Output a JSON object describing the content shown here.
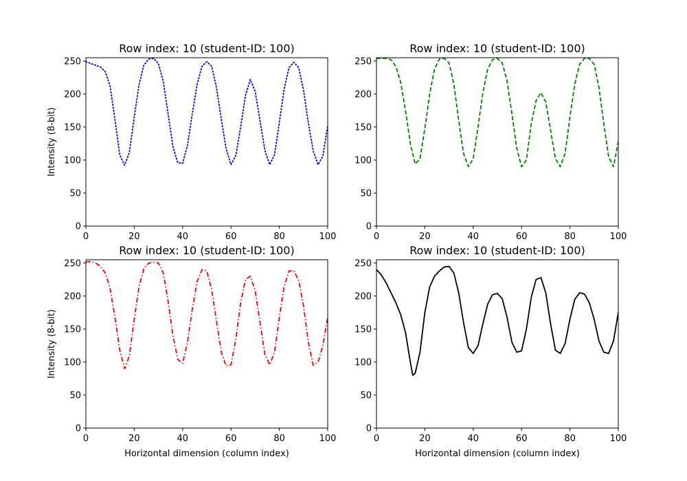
{
  "chart_data": [
    {
      "type": "line",
      "title": "Row index: 10 (student-ID: 100)",
      "xlabel": "",
      "ylabel": "Intensity (8-bit)",
      "xlim": [
        0,
        100
      ],
      "ylim": [
        0,
        255
      ],
      "xticks": [
        "0",
        "20",
        "40",
        "60",
        "80",
        "100"
      ],
      "yticks": [
        "0",
        "50",
        "100",
        "150",
        "200",
        "250"
      ],
      "grid": false,
      "series": [
        {
          "color": "#0000ff",
          "line_style": "dotted",
          "x": [
            0,
            3,
            6,
            8,
            10,
            12,
            14,
            16,
            18,
            20,
            22,
            24,
            26,
            28,
            30,
            32,
            34,
            36,
            38,
            40,
            42,
            44,
            46,
            48,
            50,
            52,
            54,
            56,
            58,
            60,
            62,
            64,
            66,
            68,
            70,
            72,
            74,
            76,
            78,
            80,
            82,
            84,
            86,
            88,
            90,
            92,
            94,
            96,
            98,
            100
          ],
          "y": [
            249,
            245,
            241,
            234,
            212,
            162,
            108,
            92,
            112,
            165,
            215,
            244,
            253,
            254,
            246,
            219,
            170,
            120,
            96,
            95,
            122,
            170,
            215,
            242,
            249,
            242,
            210,
            162,
            117,
            93,
            107,
            150,
            198,
            222,
            204,
            160,
            115,
            93,
            108,
            157,
            208,
            240,
            248,
            240,
            206,
            156,
            114,
            93,
            106,
            152
          ]
        }
      ]
    },
    {
      "type": "line",
      "title": "Row index: 10 (student-ID: 100)",
      "xlabel": "",
      "ylabel": "",
      "xlim": [
        0,
        100
      ],
      "ylim": [
        0,
        255
      ],
      "xticks": [
        "0",
        "20",
        "40",
        "60",
        "80",
        "100"
      ],
      "yticks": [
        "0",
        "50",
        "100",
        "150",
        "200",
        "250"
      ],
      "grid": false,
      "series": [
        {
          "color": "#008000",
          "line_style": "dashed",
          "x": [
            0,
            2,
            4,
            6,
            8,
            10,
            12,
            14,
            16,
            18,
            20,
            22,
            24,
            26,
            28,
            30,
            32,
            34,
            36,
            38,
            40,
            42,
            44,
            46,
            48,
            50,
            52,
            54,
            56,
            58,
            60,
            62,
            64,
            66,
            68,
            70,
            72,
            74,
            76,
            78,
            80,
            82,
            84,
            86,
            88,
            90,
            92,
            94,
            96,
            98,
            100
          ],
          "y": [
            254,
            254,
            254,
            252,
            242,
            218,
            175,
            125,
            94,
            102,
            148,
            200,
            238,
            253,
            254,
            247,
            215,
            160,
            110,
            90,
            102,
            150,
            202,
            238,
            252,
            254,
            247,
            220,
            170,
            118,
            90,
            100,
            155,
            190,
            202,
            188,
            145,
            102,
            90,
            110,
            165,
            215,
            245,
            254,
            254,
            245,
            210,
            155,
            105,
            90,
            128
          ]
        }
      ]
    },
    {
      "type": "line",
      "title": "Row index: 10 (student-ID: 100)",
      "xlabel": "Horizontal dimension (column index)",
      "ylabel": "Intensity (8-bit)",
      "xlim": [
        0,
        100
      ],
      "ylim": [
        0,
        255
      ],
      "xticks": [
        "0",
        "20",
        "40",
        "60",
        "80",
        "100"
      ],
      "yticks": [
        "0",
        "50",
        "100",
        "150",
        "200",
        "250"
      ],
      "grid": false,
      "series": [
        {
          "color": "#ff0000",
          "line_style": "dashdot",
          "x": [
            0,
            2,
            4,
            6,
            8,
            10,
            12,
            14,
            16,
            18,
            20,
            22,
            24,
            26,
            28,
            30,
            32,
            34,
            36,
            38,
            40,
            42,
            44,
            46,
            48,
            50,
            52,
            54,
            56,
            58,
            60,
            62,
            64,
            66,
            68,
            70,
            72,
            74,
            76,
            78,
            80,
            82,
            84,
            86,
            88,
            90,
            92,
            94,
            96,
            98,
            100
          ],
          "y": [
            252,
            252,
            250,
            245,
            235,
            212,
            168,
            118,
            90,
            110,
            165,
            215,
            242,
            250,
            251,
            250,
            235,
            192,
            140,
            104,
            98,
            130,
            180,
            222,
            240,
            238,
            210,
            162,
            115,
            94,
            96,
            135,
            190,
            225,
            230,
            208,
            160,
            112,
            96,
            115,
            168,
            215,
            238,
            238,
            224,
            185,
            130,
            95,
            100,
            125,
            168
          ]
        }
      ]
    },
    {
      "type": "line",
      "title": "Row index: 10 (student-ID: 100)",
      "xlabel": "Horizontal dimension (column index)",
      "ylabel": "",
      "xlim": [
        0,
        100
      ],
      "ylim": [
        0,
        255
      ],
      "xticks": [
        "0",
        "20",
        "40",
        "60",
        "80",
        "100"
      ],
      "yticks": [
        "0",
        "50",
        "100",
        "150",
        "200",
        "250"
      ],
      "grid": false,
      "series": [
        {
          "color": "#000000",
          "line_style": "solid",
          "x": [
            0,
            2,
            4,
            6,
            8,
            10,
            12,
            14,
            15,
            16,
            18,
            20,
            22,
            24,
            26,
            28,
            30,
            32,
            34,
            36,
            38,
            40,
            42,
            44,
            46,
            48,
            50,
            52,
            54,
            56,
            58,
            60,
            62,
            64,
            66,
            68,
            70,
            72,
            74,
            76,
            78,
            80,
            82,
            84,
            86,
            88,
            90,
            92,
            94,
            96,
            98,
            100
          ],
          "y": [
            240,
            232,
            220,
            205,
            190,
            172,
            145,
            100,
            80,
            83,
            115,
            175,
            214,
            230,
            238,
            244,
            245,
            235,
            205,
            160,
            122,
            113,
            125,
            158,
            188,
            202,
            204,
            196,
            168,
            130,
            115,
            117,
            150,
            198,
            225,
            228,
            205,
            158,
            118,
            113,
            128,
            165,
            195,
            205,
            203,
            190,
            165,
            132,
            115,
            113,
            132,
            175
          ]
        }
      ]
    }
  ]
}
